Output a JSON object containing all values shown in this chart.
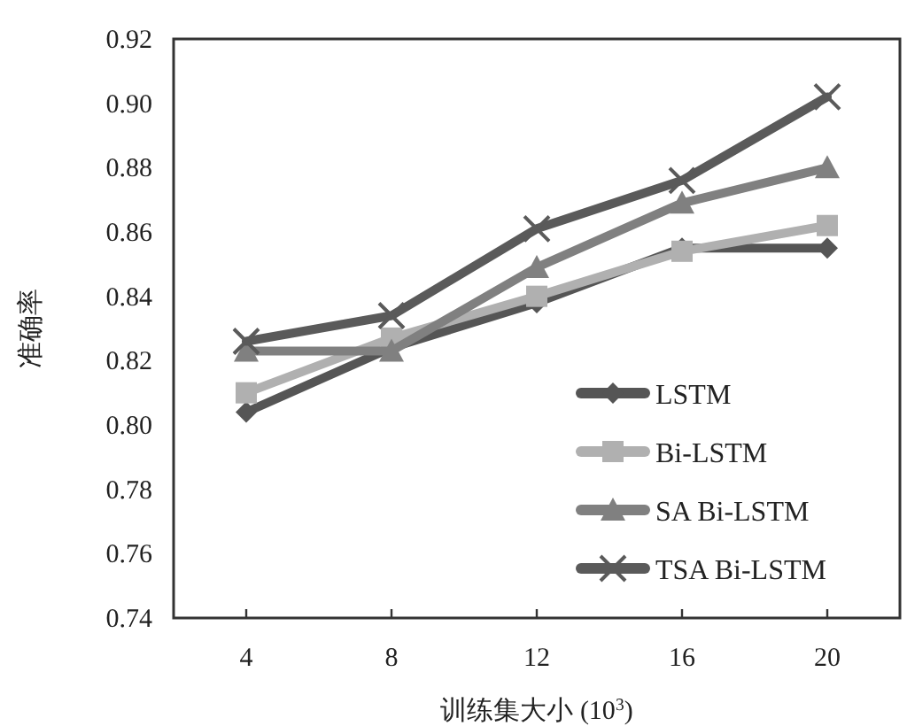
{
  "chart_data": {
    "type": "line",
    "xlabel": "训练集大小 (10$^{3}$)",
    "ylabel": "准确率",
    "categories": [
      "4",
      "8",
      "12",
      "16",
      "20"
    ],
    "ylim": [
      0.74,
      0.92
    ],
    "yticks": [
      0.74,
      0.76,
      0.78,
      {
        "value": 0.8,
        "label": "0.80"
      },
      0.82,
      0.84,
      0.86,
      0.88,
      {
        "value": 0.9,
        "label": "0.90"
      },
      0.92
    ],
    "legend": "bottom right",
    "grid": false,
    "series": [
      {
        "name": "LSTM",
        "color": "#555555",
        "marker": "diamond",
        "values": [
          0.804,
          0.824,
          0.838,
          0.855,
          0.855
        ]
      },
      {
        "name": "Bi-LSTM",
        "color": "#b0b0b0",
        "marker": "square",
        "values": [
          0.81,
          0.827,
          0.84,
          0.854,
          0.862
        ]
      },
      {
        "name": "SA Bi-LSTM",
        "color": "#808080",
        "marker": "triangle",
        "values": [
          0.823,
          0.823,
          0.849,
          0.869,
          0.88
        ]
      },
      {
        "name": "TSA Bi-LSTM",
        "color": "#5a5a5a",
        "marker": "cross",
        "values": [
          0.826,
          0.834,
          0.861,
          0.876,
          0.902
        ]
      }
    ]
  }
}
